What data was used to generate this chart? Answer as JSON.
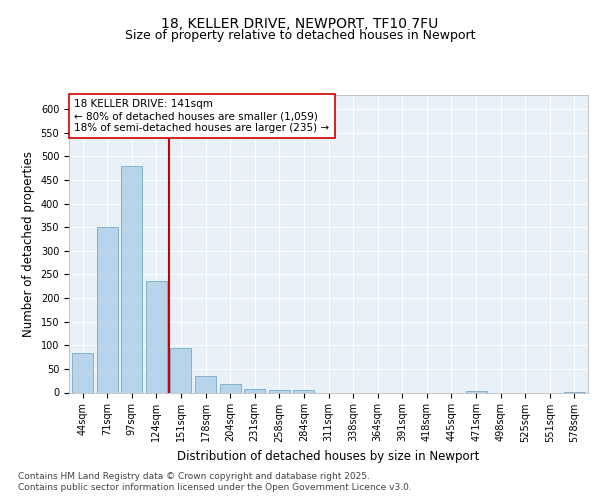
{
  "title1": "18, KELLER DRIVE, NEWPORT, TF10 7FU",
  "title2": "Size of property relative to detached houses in Newport",
  "xlabel": "Distribution of detached houses by size in Newport",
  "ylabel": "Number of detached properties",
  "bar_labels": [
    "44sqm",
    "71sqm",
    "97sqm",
    "124sqm",
    "151sqm",
    "178sqm",
    "204sqm",
    "231sqm",
    "258sqm",
    "284sqm",
    "311sqm",
    "338sqm",
    "364sqm",
    "391sqm",
    "418sqm",
    "445sqm",
    "471sqm",
    "498sqm",
    "525sqm",
    "551sqm",
    "578sqm"
  ],
  "bar_values": [
    83,
    350,
    480,
    236,
    95,
    35,
    17,
    7,
    5,
    5,
    0,
    0,
    0,
    0,
    0,
    0,
    3,
    0,
    0,
    0,
    2
  ],
  "bar_color": "#b8d4ea",
  "bar_edgecolor": "#7aaac8",
  "vline_color": "#cc0000",
  "annotation_text": "18 KELLER DRIVE: 141sqm\n← 80% of detached houses are smaller (1,059)\n18% of semi-detached houses are larger (235) →",
  "ylim": [
    0,
    630
  ],
  "yticks": [
    0,
    50,
    100,
    150,
    200,
    250,
    300,
    350,
    400,
    450,
    500,
    550,
    600
  ],
  "fig_background": "#ffffff",
  "plot_background": "#e8f0f8",
  "grid_color": "#ffffff",
  "footer1": "Contains HM Land Registry data © Crown copyright and database right 2025.",
  "footer2": "Contains public sector information licensed under the Open Government Licence v3.0.",
  "title_fontsize": 10,
  "subtitle_fontsize": 9,
  "tick_fontsize": 7,
  "label_fontsize": 8.5,
  "annotation_fontsize": 7.5,
  "footer_fontsize": 6.5
}
